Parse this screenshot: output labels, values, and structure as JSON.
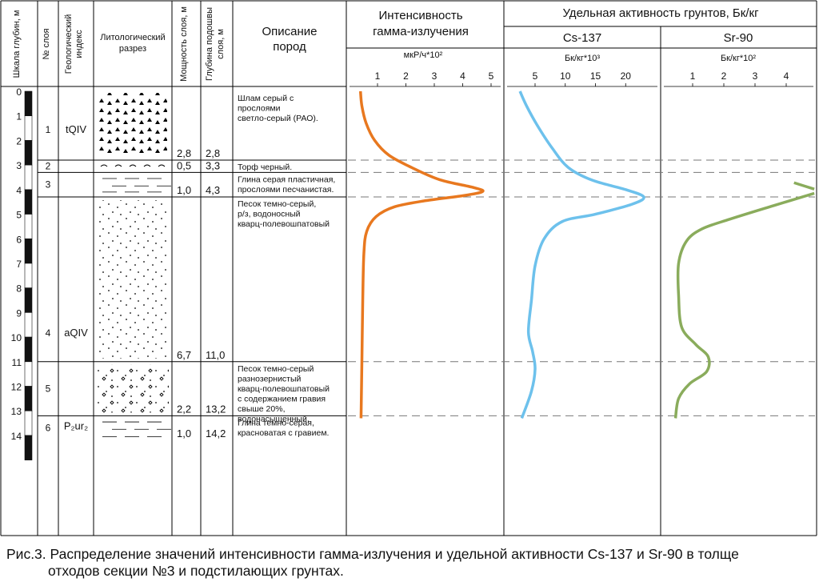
{
  "header": {
    "depth_scale": "Шкала глубин, м",
    "layer_no": "№ слоя",
    "geo_index": "Геологический индекс",
    "litho": "Литологический разрез",
    "thickness": "Мощность слоя, м",
    "base_depth": "Глубина подошвы слоя, м",
    "description": "Описание пород",
    "gamma_title_1": "Интенсивность",
    "gamma_title_2": "гамма-излучения",
    "gamma_unit": "мкР/ч*10²",
    "activity_title": "Удельная активность грунтов, Бк/кг",
    "cs_title": "Cs-137",
    "cs_unit": "Бк/кг*10³",
    "sr_title": "Sr-90",
    "sr_unit": "Бк/кг*10²"
  },
  "depth_ticks": [
    "0",
    "1",
    "2",
    "3",
    "4",
    "5",
    "6",
    "7",
    "8",
    "9",
    "10",
    "11",
    "12",
    "13",
    "14"
  ],
  "layers": [
    {
      "no": "1",
      "index": "tQIV",
      "thickness": "2,8",
      "base": "2,8",
      "desc": [
        "Шлам серый  с",
        "прослоями",
        "светло-серый (РАО)."
      ]
    },
    {
      "no": "2",
      "index": "",
      "thickness": "0,5",
      "base": "3,3",
      "desc": [
        "Торф черный."
      ]
    },
    {
      "no": "3",
      "index": "",
      "thickness": "1,0",
      "base": "4,3",
      "desc": [
        "Глина серая пластичная,",
        "прослоями песчанистая."
      ]
    },
    {
      "no": "4",
      "index": "aQIV",
      "thickness": "6,7",
      "base": "11,0",
      "desc": [
        "Песок темно-серый,",
        "р/з, водоносный",
        "кварц-полевошпатовый"
      ]
    },
    {
      "no": "5",
      "index": "",
      "thickness": "2,2",
      "base": "13,2",
      "desc": [
        "Песок темно-серый",
        "разнозернистый",
        "кварц-полевошпатовый",
        "с содержанием гравия",
        "свыше 20%,",
        "водонасыщенный."
      ]
    },
    {
      "no": "6",
      "index": "P₂ur₂",
      "thickness": "1,0",
      "base": "14,2",
      "desc": [
        "Глина темно-серая,",
        "красноватая с гравием."
      ]
    }
  ],
  "caption": {
    "line1": "Рис.3. Распределение значений интенсивности гамма-излучения и удельной активности Cs-137 и Sr-90 в толще",
    "line2": "отходов секции №3 и подстилающих грунтах."
  },
  "chart_data": [
    {
      "type": "line",
      "title": "Интенсивность гамма-излучения",
      "xlabel": "мкР/ч*10²",
      "ylabel": "Шкала глубин, м",
      "x_ticks": [
        "1",
        "2",
        "3",
        "4",
        "5"
      ],
      "xlim": [
        0.2,
        5.3
      ],
      "ylim": [
        14.0,
        0
      ],
      "color": "#e8781f",
      "series": [
        {
          "points": [
            [
              0.4,
              0.0
            ],
            [
              0.45,
              0.6
            ],
            [
              0.6,
              1.3
            ],
            [
              0.9,
              2.0
            ],
            [
              1.4,
              2.6
            ],
            [
              2.2,
              3.1
            ],
            [
              3.2,
              3.6
            ],
            [
              4.4,
              3.92
            ],
            [
              4.7,
              4.08
            ],
            [
              4.0,
              4.25
            ],
            [
              2.7,
              4.45
            ],
            [
              1.6,
              4.7
            ],
            [
              0.95,
              5.1
            ],
            [
              0.62,
              5.7
            ],
            [
              0.52,
              6.6
            ],
            [
              0.48,
              8.5
            ],
            [
              0.45,
              11.0
            ],
            [
              0.42,
              13.3
            ]
          ]
        }
      ]
    },
    {
      "type": "line",
      "title": "Cs-137",
      "xlabel": "Бк/кг*10³",
      "ylabel": "Шкала глубин, м",
      "x_ticks": [
        "5",
        "10",
        "15",
        "20"
      ],
      "xlim": [
        1.2,
        26.5
      ],
      "ylim": [
        14.0,
        0
      ],
      "color": "#6dc1ec",
      "series": [
        {
          "points": [
            [
              2.5,
              0.0
            ],
            [
              3.6,
              0.6
            ],
            [
              5.4,
              1.4
            ],
            [
              7.8,
              2.3
            ],
            [
              10.5,
              3.1
            ],
            [
              14.5,
              3.62
            ],
            [
              20.0,
              4.0
            ],
            [
              23.0,
              4.3
            ],
            [
              21.0,
              4.6
            ],
            [
              15.0,
              5.0
            ],
            [
              9.5,
              5.3
            ],
            [
              6.5,
              6.0
            ],
            [
              5.0,
              7.1
            ],
            [
              4.4,
              8.5
            ],
            [
              3.9,
              9.8
            ],
            [
              4.6,
              10.6
            ],
            [
              5.0,
              11.3
            ],
            [
              4.4,
              12.2
            ],
            [
              2.8,
              13.3
            ]
          ]
        }
      ]
    },
    {
      "type": "line",
      "title": "Sr-90",
      "xlabel": "Бк/кг*10²",
      "ylabel": "Шкала глубин, м",
      "x_ticks": [
        "1",
        "2",
        "3",
        "4"
      ],
      "xlim": [
        -0.1,
        4.9
      ],
      "ylim": [
        14.0,
        0
      ],
      "color": "#8aac5c",
      "series": [
        {
          "points": [
            [
              4.25,
              3.72
            ],
            [
              4.9,
              3.98
            ]
          ]
        },
        {
          "points": [
            [
              4.9,
              4.15
            ],
            [
              3.6,
              4.65
            ],
            [
              2.2,
              5.2
            ],
            [
              1.3,
              5.6
            ],
            [
              0.8,
              6.1
            ],
            [
              0.55,
              7.0
            ],
            [
              0.55,
              8.3
            ],
            [
              0.65,
              9.6
            ],
            [
              1.1,
              10.3
            ],
            [
              1.5,
              10.8
            ],
            [
              1.45,
              11.4
            ],
            [
              0.9,
              11.9
            ],
            [
              0.55,
              12.5
            ],
            [
              0.45,
              13.3
            ]
          ]
        }
      ]
    }
  ]
}
